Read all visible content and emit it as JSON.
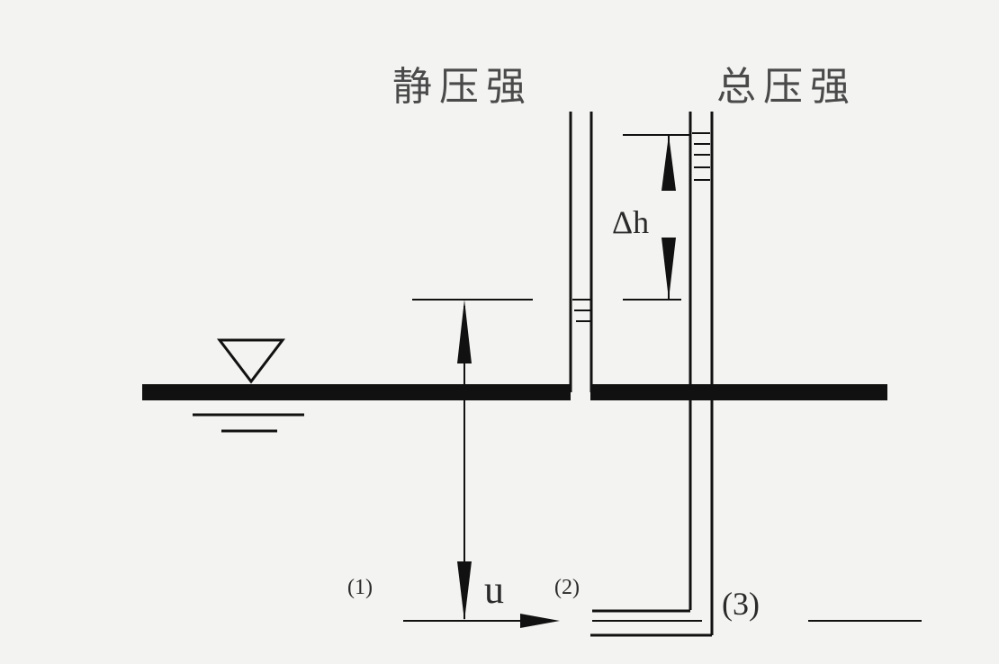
{
  "labels": {
    "static_pressure": "静压强",
    "total_pressure": "总压强",
    "delta_h": "Δh",
    "velocity": "u",
    "point_1": "(1)",
    "point_2": "(2)",
    "point_3": "(3)"
  },
  "colors": {
    "ink": "#111111",
    "background": "#f3f3f1"
  }
}
